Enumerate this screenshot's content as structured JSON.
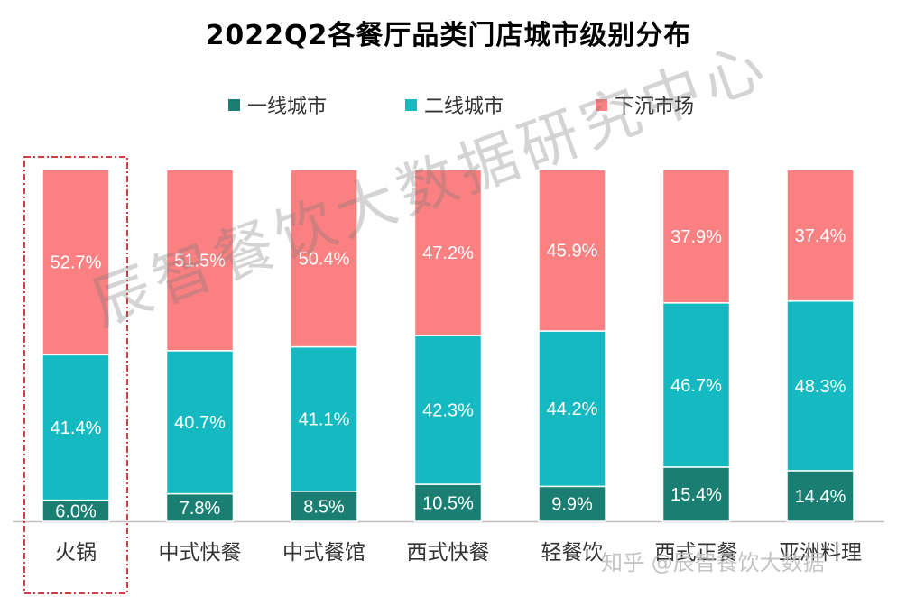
{
  "chart_data": {
    "type": "bar",
    "stacked": true,
    "percent": true,
    "title": "2022Q2各餐厅品类门店城市级别分布",
    "categories": [
      "火锅",
      "中式快餐",
      "中式餐馆",
      "西式快餐",
      "轻餐饮",
      "西式正餐",
      "亚洲料理"
    ],
    "series": [
      {
        "name": "一线城市",
        "color": "#1a7f72",
        "values": [
          6.0,
          7.8,
          8.5,
          10.5,
          9.9,
          15.4,
          14.4
        ]
      },
      {
        "name": "二线城市",
        "color": "#14b9c1",
        "values": [
          41.4,
          40.7,
          41.1,
          42.3,
          44.2,
          46.7,
          48.3
        ]
      },
      {
        "name": "下沉市场",
        "color": "#fb8082",
        "values": [
          52.7,
          51.5,
          50.4,
          47.2,
          45.9,
          37.9,
          37.4
        ]
      }
    ],
    "data_labels": [
      [
        "6.0%",
        "7.8%",
        "8.5%",
        "10.5%",
        "9.9%",
        "15.4%",
        "14.4%"
      ],
      [
        "41.4%",
        "40.7%",
        "41.1%",
        "42.3%",
        "44.2%",
        "46.7%",
        "48.3%"
      ],
      [
        "52.7%",
        "51.5%",
        "50.4%",
        "47.2%",
        "45.9%",
        "37.9%",
        "37.4%"
      ]
    ],
    "ylim": [
      0,
      100
    ],
    "legend_position": "top",
    "highlighted_category": "火锅",
    "grid": false
  },
  "watermark": "辰智餐饮大数据研究中心",
  "credit": "知乎 @辰智餐饮大数据",
  "colors": {
    "label_on_bar": "#ffffff",
    "axis": "#bfbfbf",
    "highlight_border": "#c00000"
  }
}
